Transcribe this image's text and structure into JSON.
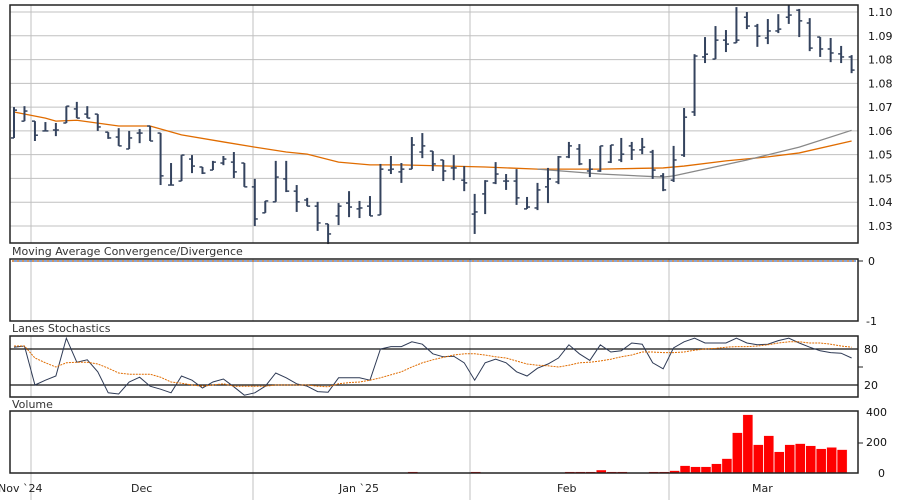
{
  "chart_data": [
    {
      "type": "ohlc",
      "name": "price",
      "x_index_count": 81,
      "ylim": [
        1.0233,
        1.1039
      ],
      "y_ticks": [
        1.1,
        1.09222,
        1.08444,
        1.07667,
        1.06889,
        1.06111,
        1.05333,
        1.04556,
        1.03778,
        1.03
      ],
      "y_tick_labels": [
        "1.10",
        "1.09",
        "1.08",
        "1.08",
        "1.07",
        "1.06",
        "1.05",
        "1.05",
        "1.04",
        "1.03"
      ],
      "ohlc": [
        [
          1.0588,
          1.0689,
          1.0588,
          1.0679
        ],
        [
          1.0643,
          1.0692,
          1.0643,
          1.0676
        ],
        [
          1.0643,
          1.0643,
          1.0578,
          1.0597
        ],
        [
          1.0611,
          1.064,
          1.0611,
          1.0611
        ],
        [
          1.0614,
          1.0637,
          1.0594,
          1.0614
        ],
        [
          1.0637,
          1.0692,
          1.0637,
          1.0692
        ],
        [
          1.0683,
          1.0706,
          1.0653,
          1.0653
        ],
        [
          1.0666,
          1.0692,
          1.0653,
          1.0653
        ],
        [
          1.0666,
          1.0666,
          1.0611,
          1.0624
        ],
        [
          1.0607,
          1.0607,
          1.0585,
          1.0588
        ],
        [
          1.0591,
          1.062,
          1.0562,
          1.0562
        ],
        [
          1.0552,
          1.0611,
          1.0552,
          1.0588
        ],
        [
          1.0604,
          1.0617,
          1.0571,
          1.0604
        ],
        [
          1.0627,
          1.0627,
          1.0578,
          1.0578
        ],
        [
          1.0604,
          1.0604,
          1.0434,
          1.0464
        ],
        [
          1.0434,
          1.0506,
          1.0434,
          1.0434
        ],
        [
          1.0447,
          1.0532,
          1.0447,
          1.0532
        ],
        [
          1.0519,
          1.0532,
          1.0473,
          1.0496
        ],
        [
          1.0493,
          1.0493,
          1.047,
          1.0473
        ],
        [
          1.0483,
          1.0513,
          1.0483,
          1.0509
        ],
        [
          1.0506,
          1.0529,
          1.0499,
          1.0519
        ],
        [
          1.0509,
          1.0542,
          1.0457,
          1.0477
        ],
        [
          1.0506,
          1.0506,
          1.0428,
          1.0428
        ],
        [
          1.0428,
          1.0454,
          1.03,
          1.0323
        ],
        [
          1.0343,
          1.0382,
          1.0343,
          1.0382
        ],
        [
          1.0379,
          1.0513,
          1.0379,
          1.046
        ],
        [
          1.0454,
          1.0513,
          1.0411,
          1.0414
        ],
        [
          1.0414,
          1.0434,
          1.0346,
          1.0379
        ],
        [
          1.0385,
          1.0392,
          1.0365,
          1.0365
        ],
        [
          1.0365,
          1.0379,
          1.0284,
          1.031
        ],
        [
          1.0307,
          1.0307,
          1.0241,
          1.0274
        ],
        [
          1.0333,
          1.0375,
          1.0303,
          1.0365
        ],
        [
          1.0375,
          1.0414,
          1.0329,
          1.0362
        ],
        [
          1.0356,
          1.0382,
          1.0326,
          1.0359
        ],
        [
          1.0365,
          1.0398,
          1.0333,
          1.0333
        ],
        [
          1.0336,
          1.0503,
          1.0336,
          1.0486
        ],
        [
          1.0483,
          1.0529,
          1.047,
          1.0486
        ],
        [
          1.0477,
          1.0506,
          1.0441,
          1.0486
        ],
        [
          1.0486,
          1.0591,
          1.0486,
          1.0565
        ],
        [
          1.0542,
          1.0604,
          1.0522,
          1.0562
        ],
        [
          1.0545,
          1.0545,
          1.048,
          1.0503
        ],
        [
          1.0516,
          1.0516,
          1.0447,
          1.048
        ],
        [
          1.049,
          1.0532,
          1.045,
          1.049
        ],
        [
          1.045,
          1.0496,
          1.0414,
          1.0441
        ],
        [
          1.0339,
          1.0405,
          1.0274,
          1.0346
        ],
        [
          1.0405,
          1.045,
          1.0339,
          1.0447
        ],
        [
          1.0441,
          1.0509,
          1.0437,
          1.047
        ],
        [
          1.0447,
          1.047,
          1.0418,
          1.0447
        ],
        [
          1.0447,
          1.0486,
          1.0369,
          1.0392
        ],
        [
          1.0356,
          1.0395,
          1.0356,
          1.0362
        ],
        [
          1.0359,
          1.0441,
          1.0352,
          1.0418
        ],
        [
          1.0428,
          1.049,
          1.0375,
          1.0454
        ],
        [
          1.0444,
          1.0529,
          1.0437,
          1.0526
        ],
        [
          1.0526,
          1.0575,
          1.0522,
          1.0562
        ],
        [
          1.0552,
          1.0568,
          1.0499,
          1.0503
        ],
        [
          1.048,
          1.0519,
          1.046,
          1.0486
        ],
        [
          1.048,
          1.0562,
          1.0477,
          1.0562
        ],
        [
          1.0509,
          1.0565,
          1.0506,
          1.0565
        ],
        [
          1.0516,
          1.0588,
          1.0509,
          1.0535
        ],
        [
          1.0562,
          1.0575,
          1.0516,
          1.0549
        ],
        [
          1.0549,
          1.0588,
          1.0535,
          1.0558
        ],
        [
          1.0542,
          1.0549,
          1.0454,
          1.0483
        ],
        [
          1.0464,
          1.0473,
          1.0414,
          1.0418
        ],
        [
          1.045,
          1.0562,
          1.0444,
          1.0516
        ],
        [
          1.0532,
          1.0686,
          1.0526,
          1.0656
        ],
        [
          1.0673,
          1.0862,
          1.066,
          1.0856
        ],
        [
          1.0853,
          1.0918,
          1.0833,
          1.0862
        ],
        [
          1.0846,
          1.0954,
          1.0846,
          1.0908
        ],
        [
          1.0908,
          1.0941,
          1.0869,
          1.0895
        ],
        [
          1.0899,
          1.1016,
          1.0899,
          1.0908
        ],
        [
          1.0983,
          1.1,
          1.0944,
          1.0954
        ],
        [
          1.0954,
          1.0961,
          1.0886,
          1.0921
        ],
        [
          1.0915,
          1.0977,
          1.0895,
          1.0938
        ],
        [
          1.0938,
          1.0993,
          1.0931,
          1.0944
        ],
        [
          1.0983,
          1.1023,
          1.0961,
          1.099
        ],
        [
          1.1006,
          1.101,
          1.0918,
          1.0971
        ],
        [
          1.0964,
          1.098,
          1.0872,
          1.0882
        ],
        [
          1.0918,
          1.0918,
          1.0853,
          1.0879
        ],
        [
          1.0879,
          1.0915,
          1.0836,
          1.0866
        ],
        [
          1.0863,
          1.0889,
          1.0833,
          1.0853
        ],
        [
          1.0853,
          1.0859,
          1.08,
          1.081
        ]
      ],
      "moving_averages": [
        {
          "name": "ma-orange",
          "color": "#e06c00",
          "points": [
            [
              0,
              1.0673
            ],
            [
              3,
              1.0653
            ],
            [
              4,
              1.0643
            ],
            [
              6,
              1.0646
            ],
            [
              10,
              1.0627
            ],
            [
              13,
              1.0627
            ],
            [
              16,
              1.0598
            ],
            [
              20,
              1.0575
            ],
            [
              23,
              1.0558
            ],
            [
              26,
              1.0542
            ],
            [
              28,
              1.0535
            ],
            [
              31,
              1.0509
            ],
            [
              34,
              1.05
            ],
            [
              37,
              1.05
            ],
            [
              45,
              1.0493
            ],
            [
              50,
              1.0486
            ],
            [
              56,
              1.0486
            ],
            [
              62,
              1.049
            ],
            [
              64,
              1.0496
            ],
            [
              68,
              1.0513
            ],
            [
              72,
              1.0526
            ],
            [
              75,
              1.0539
            ],
            [
              80,
              1.0578
            ]
          ]
        },
        {
          "name": "ma-gray",
          "color": "#888888",
          "points": [
            [
              50,
              1.0486
            ],
            [
              56,
              1.047
            ],
            [
              62,
              1.046
            ],
            [
              63,
              1.0464
            ],
            [
              70,
              1.0516
            ],
            [
              75,
              1.0558
            ],
            [
              80,
              1.0613
            ]
          ]
        }
      ]
    },
    {
      "type": "line",
      "name": "macd",
      "title": "Moving Average Convergence/Divergence",
      "ylim": [
        -1,
        0
      ],
      "y_tick_labels": [
        "0",
        "-1"
      ],
      "series": [
        {
          "name": "macd",
          "color": "#3a6fc4",
          "value": 0
        },
        {
          "name": "signal",
          "color": "#e06c00",
          "value": 0
        }
      ]
    },
    {
      "type": "line",
      "name": "stochastics",
      "title": "Lanes Stochastics",
      "ylim": [
        0,
        100
      ],
      "levels": [
        80,
        20
      ],
      "y_tick_labels": [
        "80",
        "20"
      ],
      "series": [
        {
          "name": "%K",
          "color": "#2e3a55",
          "values": [
            83,
            85,
            20,
            28,
            35,
            98,
            58,
            62,
            42,
            7,
            5,
            25,
            33,
            18,
            13,
            7,
            35,
            28,
            15,
            25,
            30,
            17,
            3,
            7,
            18,
            40,
            32,
            22,
            18,
            9,
            8,
            32,
            32,
            32,
            28,
            80,
            84,
            84,
            92,
            88,
            72,
            67,
            68,
            57,
            28,
            57,
            63,
            57,
            42,
            35,
            48,
            55,
            65,
            87,
            72,
            61,
            87,
            75,
            77,
            90,
            88,
            57,
            47,
            82,
            92,
            98,
            90,
            90,
            90,
            98,
            90,
            87,
            88,
            94,
            98,
            90,
            83,
            77,
            74,
            73,
            65
          ]
        },
        {
          "name": "%D",
          "color": "#e06c00",
          "values": [
            85,
            85,
            65,
            57,
            50,
            57,
            58,
            58,
            55,
            48,
            40,
            38,
            38,
            38,
            33,
            25,
            23,
            20,
            18,
            20,
            22,
            18,
            18,
            18,
            18,
            20,
            20,
            20,
            20,
            18,
            17,
            22,
            24,
            25,
            28,
            32,
            37,
            42,
            50,
            57,
            62,
            66,
            70,
            72,
            72,
            70,
            67,
            65,
            60,
            55,
            53,
            52,
            50,
            53,
            57,
            58,
            60,
            63,
            67,
            70,
            75,
            75,
            74,
            74,
            75,
            78,
            80,
            81,
            83,
            84,
            84,
            85,
            87,
            90,
            92,
            92,
            90,
            90,
            88,
            85,
            83
          ]
        }
      ]
    },
    {
      "type": "bar",
      "name": "volume",
      "title": "Volume",
      "ylim": [
        0,
        400
      ],
      "y_tick_labels": [
        "400",
        "200",
        "0"
      ],
      "color": "#ff0000",
      "values": [
        0,
        0,
        0,
        0,
        0,
        0,
        0,
        0,
        0,
        0,
        0,
        0,
        0,
        0,
        0,
        0,
        0,
        0,
        0,
        0,
        0,
        0,
        0,
        0,
        0,
        0,
        0,
        0,
        0,
        0,
        0,
        0,
        0,
        0,
        0,
        0,
        0,
        0,
        0,
        8,
        0,
        0,
        0,
        0,
        0,
        8,
        0,
        0,
        0,
        0,
        0,
        0,
        0,
        0,
        8,
        8,
        8,
        20,
        8,
        8,
        0,
        0,
        8,
        8,
        16,
        49,
        42,
        42,
        62,
        96,
        269,
        389,
        189,
        249,
        142,
        189,
        196,
        182,
        162,
        171,
        156
      ]
    },
    {
      "type": "x_axis",
      "month_labels": [
        "Nov `24",
        "Dec",
        "Jan `25",
        "Feb",
        "Mar"
      ]
    }
  ]
}
